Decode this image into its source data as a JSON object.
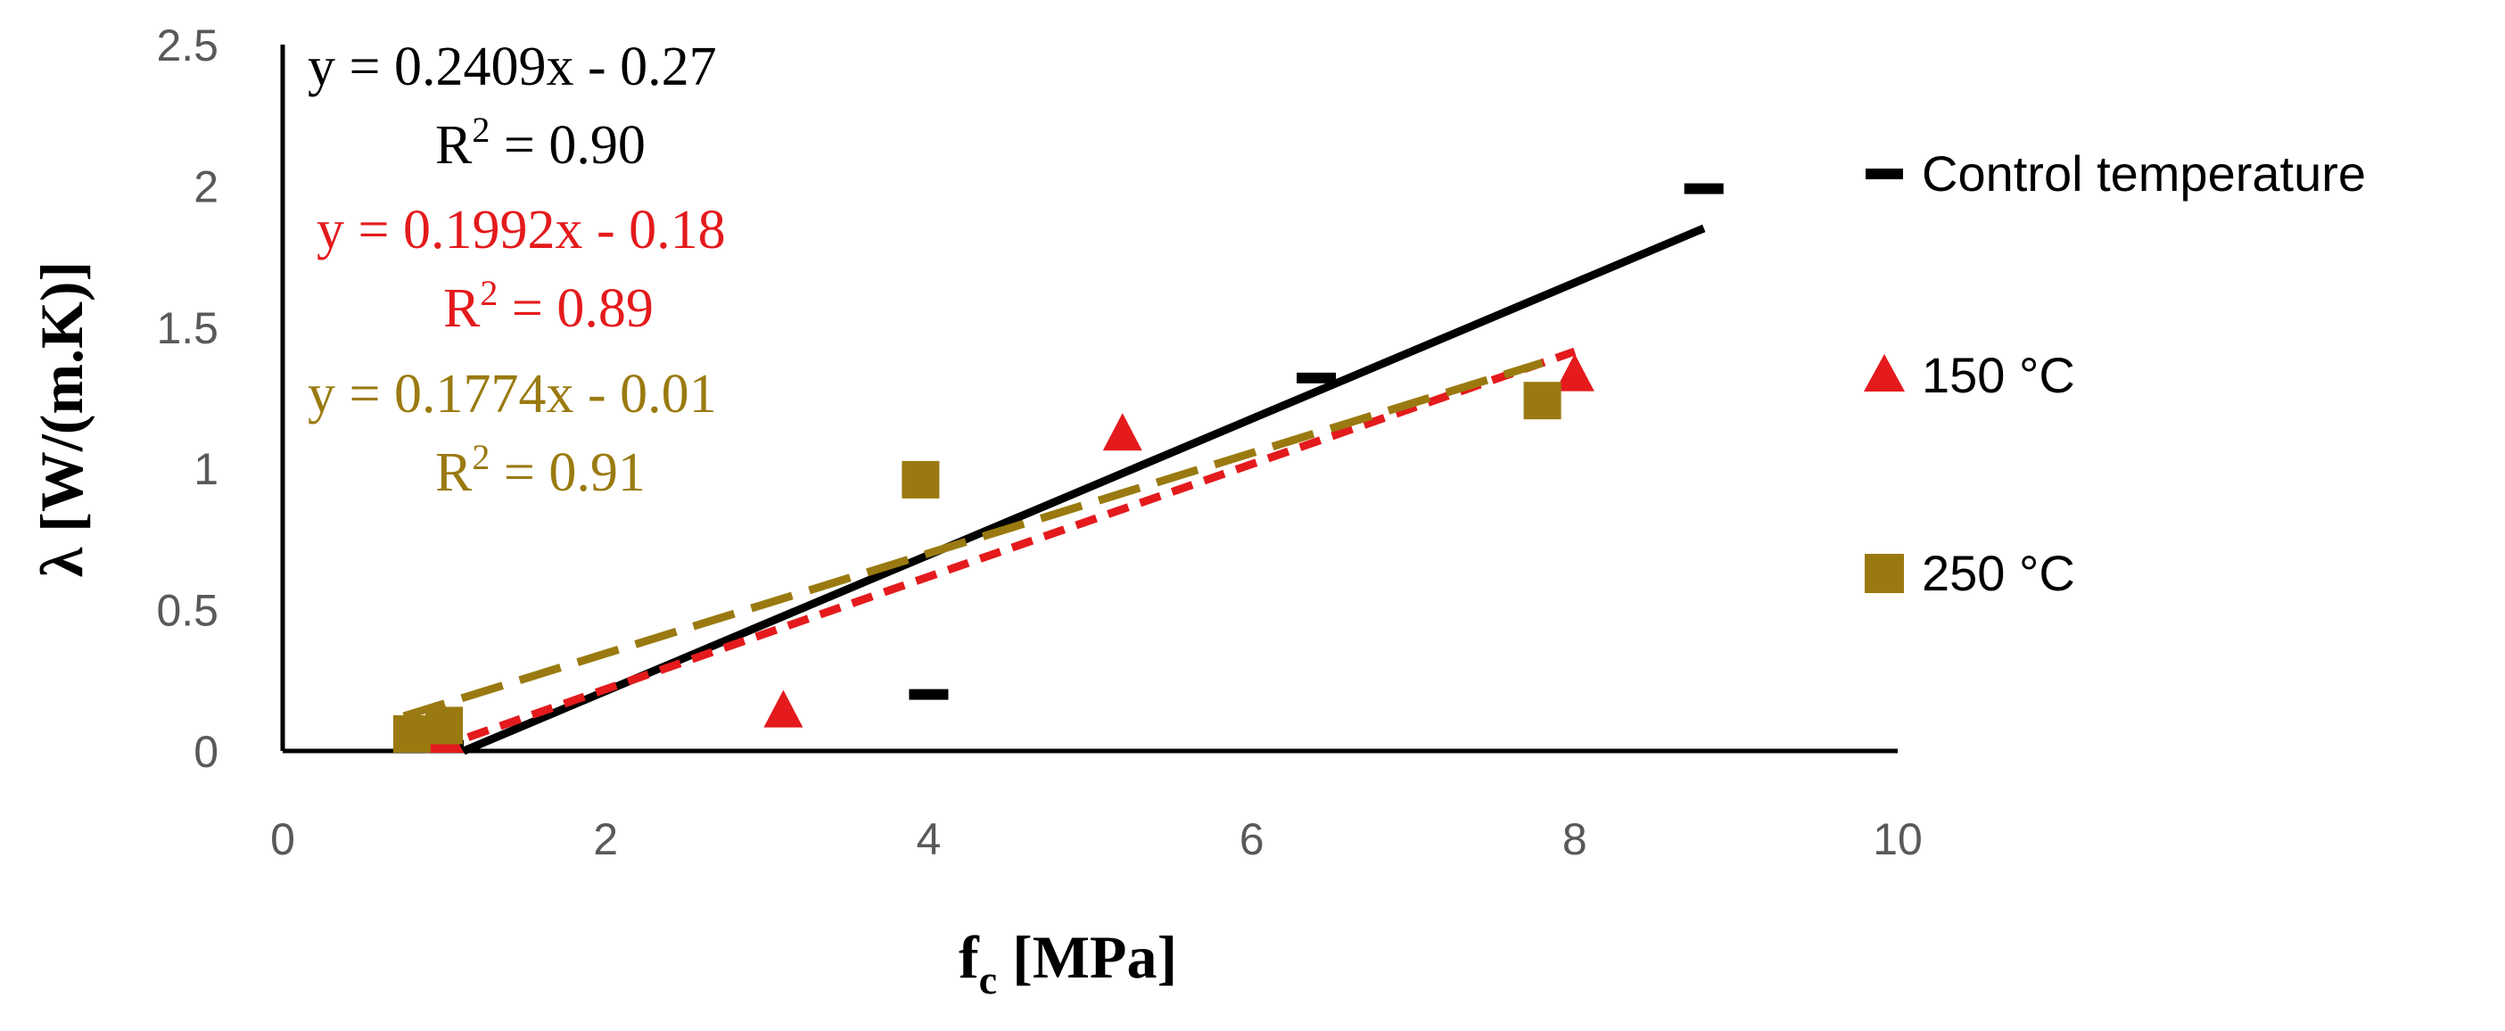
{
  "colors": {
    "control": "#000000",
    "c150": "#e41a1c",
    "c250": "#9a7a10",
    "axis": "#000000",
    "tick_text": "#595959"
  },
  "chart_data": {
    "type": "scatter",
    "xlabel": "f",
    "xlabel_sub": "c",
    "xlabel_unit": "[MPa]",
    "ylabel": "λ [W/(m.K)]",
    "xlim": [
      0,
      10
    ],
    "ylim": [
      0,
      2.5
    ],
    "x_ticks": [
      "0",
      "2",
      "4",
      "6",
      "8",
      "10"
    ],
    "y_ticks": [
      "0",
      "0.5",
      "1",
      "1.5",
      "2",
      "2.5"
    ],
    "grid": false,
    "legend_position": "right",
    "series": [
      {
        "name": "Control temperature",
        "marker": "dash",
        "color_key": "control",
        "points": [
          [
            1.0,
            0.02
          ],
          [
            4.0,
            0.2
          ],
          [
            6.4,
            1.32
          ],
          [
            8.8,
            1.99
          ]
        ],
        "trendline": {
          "slope": 0.2409,
          "intercept": -0.27,
          "x_range": [
            1.12,
            8.8
          ],
          "style": "solid"
        },
        "equation": "y = 0.2409x - 0.27",
        "r2_label": "R",
        "r2_value": " = 0.90"
      },
      {
        "name": "150 °C",
        "marker": "triangle",
        "color_key": "c150",
        "points": [
          [
            1.0,
            0.05
          ],
          [
            3.1,
            0.14
          ],
          [
            5.2,
            1.12
          ],
          [
            8.0,
            1.33
          ]
        ],
        "trendline": {
          "slope": 0.1992,
          "intercept": -0.18,
          "x_range": [
            0.95,
            8.0
          ],
          "style": "short-dash"
        },
        "equation": "y = 0.1992x - 0.18",
        "r2_label": "R",
        "r2_value": " = 0.89"
      },
      {
        "name": "250 °C",
        "marker": "square",
        "color_key": "c250",
        "points": [
          [
            0.8,
            0.06
          ],
          [
            1.0,
            0.09
          ],
          [
            3.95,
            0.96
          ],
          [
            7.8,
            1.24
          ]
        ],
        "trendline": {
          "slope": 0.1774,
          "intercept": -0.01,
          "x_range": [
            0.75,
            7.8
          ],
          "style": "long-dash"
        },
        "equation": "y = 0.1774x - 0.01",
        "r2_label": "R",
        "r2_value": " = 0.91"
      }
    ]
  }
}
